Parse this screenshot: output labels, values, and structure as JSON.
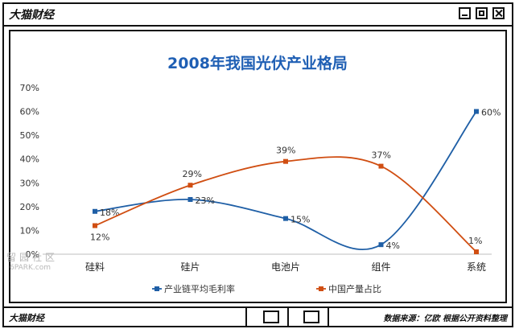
{
  "window": {
    "title": "大猫财经"
  },
  "footer": {
    "left": "大猫财经",
    "source": "数据来源：亿欧 根据公开资料整理"
  },
  "watermark": {
    "text": "留园社区",
    "sub": "6PARK.com"
  },
  "chart_data": {
    "type": "line",
    "title": "2008年我国光伏产业格局",
    "categories": [
      "硅料",
      "硅片",
      "电池片",
      "组件",
      "系统"
    ],
    "yticks": [
      "0%",
      "10%",
      "20%",
      "30%",
      "40%",
      "50%",
      "60%",
      "70%"
    ],
    "ylim": [
      0,
      70
    ],
    "legend_position": "bottom",
    "grid": false,
    "smooth": true,
    "series": [
      {
        "name": "产业链平均毛利率",
        "values": [
          18,
          23,
          15,
          4,
          60
        ],
        "labels": [
          "18%",
          "23%",
          "15%",
          "4%",
          "60%"
        ],
        "color": "#1f5fa6"
      },
      {
        "name": "中国产量占比",
        "values": [
          12,
          29,
          39,
          37,
          1
        ],
        "labels": [
          "12%",
          "29%",
          "39%",
          "37%",
          "1%"
        ],
        "color": "#d04e12"
      }
    ],
    "title_color": "#1f5fb4"
  }
}
